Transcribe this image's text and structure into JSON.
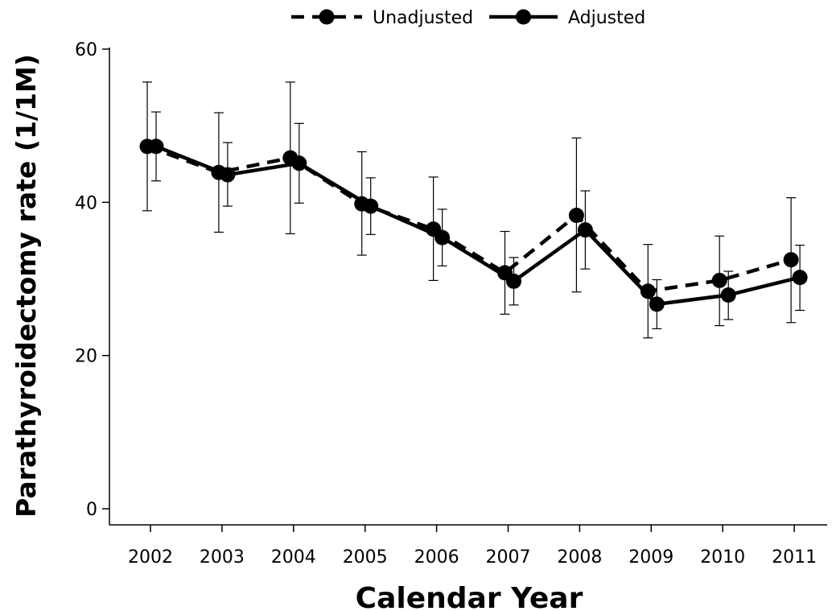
{
  "chart_data": {
    "type": "line",
    "title": "",
    "xlabel": "Calendar Year",
    "ylabel": "Parathyroidectomy rate (1/1M)",
    "x": [
      "2002",
      "2003",
      "2004",
      "2005",
      "2006",
      "2007",
      "2008",
      "2009",
      "2010",
      "2011"
    ],
    "ylim": [
      0,
      60
    ],
    "yticks": [
      "0",
      "20",
      "40",
      "60"
    ],
    "grid": false,
    "legend": "top-center",
    "series": [
      {
        "name": "Unadjusted",
        "line_style": "dashed",
        "color": "#000000",
        "values": [
          47.3,
          43.9,
          45.8,
          39.8,
          36.5,
          30.8,
          38.3,
          28.4,
          29.8,
          32.5
        ],
        "ci_low": [
          38.9,
          36.1,
          35.9,
          33.1,
          29.8,
          25.4,
          28.3,
          22.3,
          23.9,
          24.3
        ],
        "ci_high": [
          55.7,
          51.7,
          55.7,
          46.6,
          43.3,
          36.2,
          48.4,
          34.5,
          35.6,
          40.6
        ]
      },
      {
        "name": "Adjusted",
        "line_style": "solid",
        "color": "#000000",
        "values": [
          47.3,
          43.6,
          45.1,
          39.5,
          35.4,
          29.7,
          36.4,
          26.7,
          27.9,
          30.2
        ],
        "ci_low": [
          42.8,
          39.5,
          39.9,
          35.8,
          31.7,
          26.6,
          31.3,
          23.5,
          24.7,
          25.9
        ],
        "ci_high": [
          51.8,
          47.8,
          50.3,
          43.2,
          39.1,
          32.8,
          41.5,
          29.9,
          31.0,
          34.4
        ]
      }
    ]
  }
}
